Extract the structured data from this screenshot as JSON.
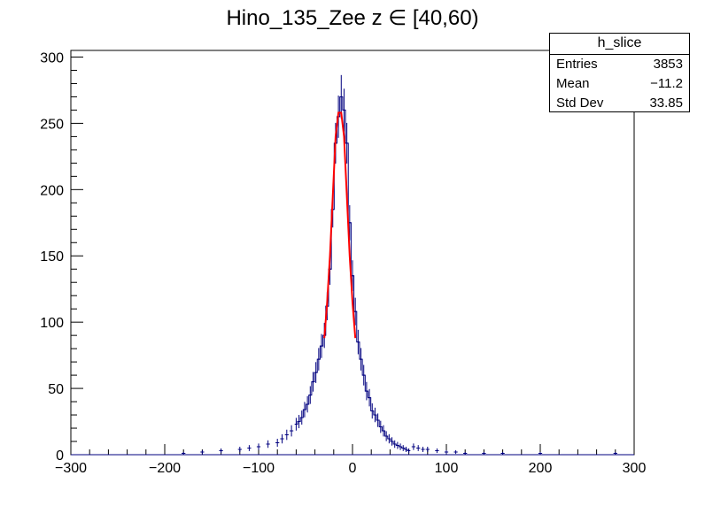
{
  "chart_data": {
    "type": "histogram",
    "title": "Hino_135_Zee z  ∈ [40,60)",
    "xlim": [
      -300,
      300
    ],
    "ylim": [
      0,
      305
    ],
    "x_ticks": [
      -300,
      -200,
      -100,
      0,
      100,
      200,
      300
    ],
    "x_tick_labels": [
      "−300",
      "−200",
      "−100",
      "0",
      "100",
      "200",
      "300"
    ],
    "y_ticks": [
      0,
      50,
      100,
      150,
      200,
      250,
      300
    ],
    "y_tick_labels": [
      "0",
      "50",
      "100",
      "150",
      "200",
      "250",
      "300"
    ],
    "grid": false,
    "histogram_color": "#00007f",
    "fit_color": "#ff0000",
    "bins": {
      "x": [
        -60,
        -57,
        -54,
        -51,
        -48,
        -45,
        -42,
        -39,
        -36,
        -33,
        -30,
        -27,
        -24,
        -21,
        -18,
        -15,
        -12,
        -9,
        -6,
        -3,
        0,
        3,
        6,
        9,
        12,
        15,
        18,
        21,
        24,
        27,
        30,
        33,
        36,
        39,
        42,
        45,
        48,
        51,
        54,
        57,
        60
      ],
      "y": [
        23,
        25,
        28,
        34,
        38,
        45,
        55,
        62,
        72,
        82,
        90,
        112,
        140,
        185,
        235,
        255,
        270,
        260,
        235,
        175,
        135,
        108,
        85,
        72,
        60,
        48,
        43,
        33,
        30,
        26,
        21,
        18,
        14,
        12,
        10,
        8,
        7,
        6,
        5,
        4,
        3
      ]
    },
    "tails": {
      "left_x": [
        -180,
        -160,
        -140,
        -120,
        -110,
        -100,
        -90,
        -80,
        -75,
        -70,
        -65
      ],
      "left_y": [
        1,
        2,
        3,
        4,
        5,
        6,
        8,
        9,
        12,
        15,
        18
      ],
      "right_x": [
        65,
        70,
        75,
        80,
        90,
        100,
        110,
        120,
        140,
        160,
        200,
        280
      ],
      "right_y": [
        6,
        5,
        4,
        4,
        3,
        2,
        2,
        1,
        1,
        1,
        1,
        1
      ]
    },
    "fit": {
      "x": [
        -30,
        -27,
        -24,
        -21,
        -18,
        -15,
        -12,
        -9,
        -6,
        -3,
        0,
        3
      ],
      "y": [
        88,
        115,
        150,
        195,
        240,
        258,
        258,
        240,
        195,
        150,
        115,
        88
      ]
    },
    "stats_box": {
      "name": "h_slice",
      "entries_label": "Entries",
      "entries": "3853",
      "mean_label": "Mean",
      "mean": "−11.2",
      "stddev_label": "Std Dev",
      "stddev": "33.85"
    }
  }
}
